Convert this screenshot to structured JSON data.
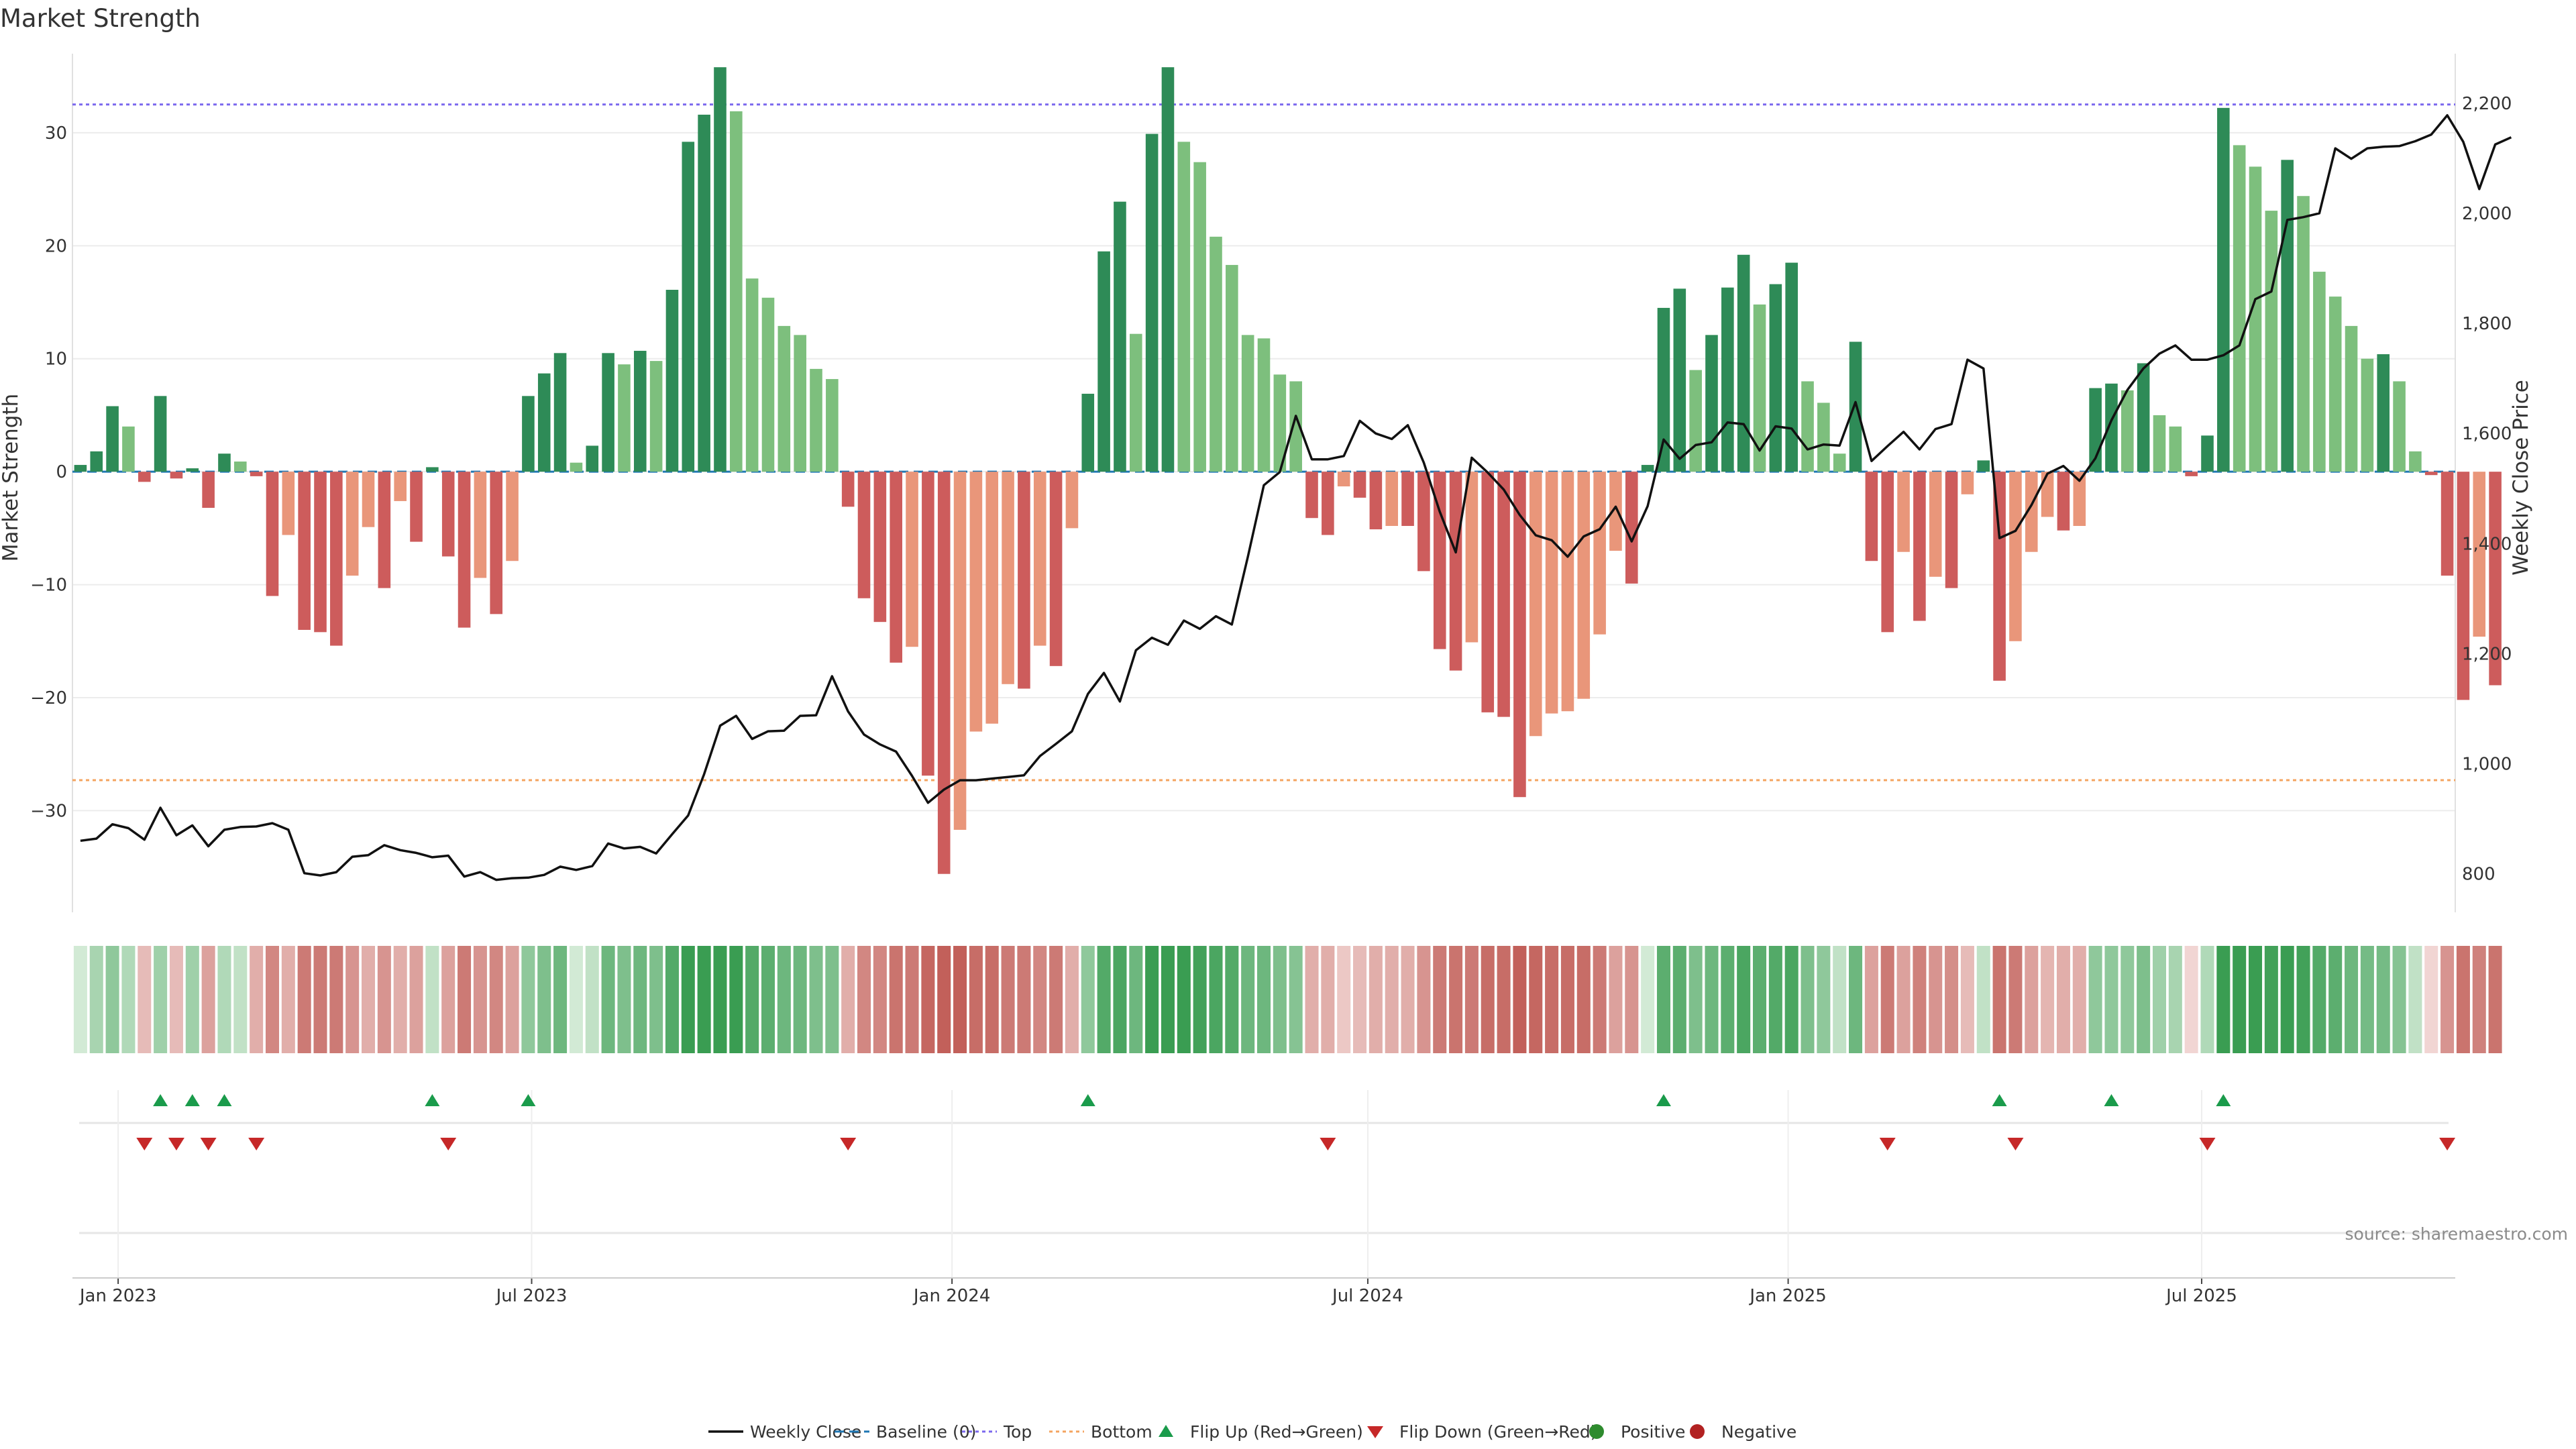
{
  "chart_data": {
    "type": "bar",
    "title": "Market Strength",
    "ylabel": "Market Strength",
    "y2label": "Weekly Close Price",
    "ylim": [
      -39,
      37
    ],
    "y2lim": [
      730,
      2290
    ],
    "yticks": [
      30,
      20,
      10,
      0,
      -10,
      -20,
      -30
    ],
    "y2ticks": [
      2200,
      2000,
      1800,
      1600,
      1400,
      1200,
      1000,
      800
    ],
    "x_start": "2022-12-12",
    "x_end": "2025-10-20",
    "xticks": [
      {
        "date": "2023-01-01",
        "label": "Jan 2023"
      },
      {
        "date": "2023-07-01",
        "label": "Jul 2023"
      },
      {
        "date": "2024-01-01",
        "label": "Jan 2024"
      },
      {
        "date": "2024-07-01",
        "label": "Jul 2024"
      },
      {
        "date": "2025-01-01",
        "label": "Jan 2025"
      },
      {
        "date": "2025-07-01",
        "label": "Jul 2025"
      }
    ],
    "top": 32.5,
    "bottom": -27.3,
    "weeks_start": "2022-12-12",
    "market_strength": [
      0.6,
      1.8,
      5.8,
      4.0,
      -0.9,
      6.7,
      -0.6,
      0.3,
      -3.2,
      1.6,
      0.9,
      -0.4,
      -11.0,
      -5.6,
      -14.0,
      -14.2,
      -15.4,
      -9.2,
      -4.9,
      -10.3,
      -2.6,
      -6.2,
      0.4,
      -7.5,
      -13.8,
      -9.4,
      -12.6,
      -7.9,
      6.7,
      8.7,
      10.5,
      0.8,
      2.3,
      10.5,
      9.5,
      10.7,
      9.8,
      16.1,
      29.2,
      31.6,
      35.8,
      31.9,
      17.1,
      15.4,
      12.9,
      12.1,
      9.1,
      8.2,
      -3.1,
      -11.2,
      -13.3,
      -16.9,
      -15.5,
      -26.9,
      -35.6,
      -31.7,
      -23.0,
      -22.3,
      -18.8,
      -19.2,
      -15.4,
      -17.2,
      -5.0,
      6.9,
      19.5,
      23.9,
      12.2,
      29.9,
      35.8,
      29.2,
      27.4,
      20.8,
      18.3,
      12.1,
      11.8,
      8.6,
      8.0,
      -4.1,
      -5.6,
      -1.3,
      -2.3,
      -5.1,
      -4.8,
      -4.8,
      -8.8,
      -15.7,
      -17.6,
      -15.1,
      -21.3,
      -21.7,
      -28.8,
      -23.4,
      -21.4,
      -21.2,
      -20.1,
      -14.4,
      -7.0,
      -9.9,
      0.6,
      14.5,
      16.2,
      9.0,
      12.1,
      16.3,
      19.2,
      14.8,
      16.6,
      18.5,
      8.0,
      6.1,
      1.6,
      11.5,
      -7.9,
      -14.2,
      -7.1,
      -13.2,
      -9.3,
      -10.3,
      -2.0,
      1.0,
      -18.5,
      -15.0,
      -7.1,
      -4.0,
      -5.2,
      -4.8,
      7.4,
      7.8,
      7.2,
      9.6,
      5.0,
      4.0,
      -0.4,
      3.2,
      32.2,
      28.9,
      27.0,
      23.1,
      27.6,
      24.4,
      17.7,
      15.5,
      12.9,
      10.0,
      10.4,
      8.0,
      1.8,
      -0.3,
      -9.2,
      -20.2,
      -14.6,
      -18.9
    ],
    "weekly_close": [
      860,
      864,
      890,
      883,
      862,
      920,
      870,
      888,
      850,
      880,
      885,
      886,
      892,
      880,
      801,
      797,
      803,
      831,
      834,
      852,
      843,
      838,
      830,
      833,
      795,
      803,
      789,
      792,
      793,
      798,
      813,
      807,
      814,
      855,
      846,
      849,
      837,
      872,
      906,
      981,
      1069,
      1087,
      1045,
      1059,
      1060,
      1087,
      1088,
      1159,
      1095,
      1053,
      1035,
      1022,
      978,
      929,
      953,
      970,
      970,
      973,
      976,
      979,
      1014,
      1036,
      1059,
      1127,
      1165,
      1113,
      1206,
      1229,
      1216,
      1260,
      1245,
      1268,
      1253,
      1376,
      1506,
      1530,
      1632,
      1553,
      1553,
      1559,
      1623,
      1600,
      1590,
      1615,
      1547,
      1458,
      1384,
      1556,
      1529,
      1498,
      1452,
      1415,
      1406,
      1376,
      1413,
      1426,
      1467,
      1404,
      1468,
      1589,
      1554,
      1579,
      1584,
      1620,
      1617,
      1569,
      1613,
      1609,
      1571,
      1580,
      1578,
      1657,
      1550,
      1577,
      1603,
      1571,
      1608,
      1617,
      1734,
      1718,
      1410,
      1423,
      1470,
      1527,
      1541,
      1514,
      1555,
      1624,
      1679,
      1718,
      1745,
      1760,
      1734,
      1734,
      1742,
      1760,
      1844,
      1858,
      1988,
      1993,
      2000,
      2118,
      2099,
      2118,
      2121,
      2122,
      2131,
      2143,
      2178,
      2130,
      2044,
      2125,
      2138
    ],
    "hue_strip": [
      0.1,
      0.35,
      0.5,
      0.3,
      -0.3,
      0.4,
      -0.3,
      0.4,
      -0.5,
      0.3,
      0.2,
      -0.4,
      -0.7,
      -0.4,
      -0.8,
      -0.8,
      -0.8,
      -0.6,
      -0.4,
      -0.6,
      -0.4,
      -0.5,
      0.2,
      -0.5,
      -0.8,
      -0.6,
      -0.7,
      -0.5,
      0.5,
      0.6,
      0.7,
      0.1,
      0.2,
      0.7,
      0.6,
      0.7,
      0.6,
      0.85,
      1.0,
      1.0,
      1.0,
      1.0,
      0.85,
      0.8,
      0.7,
      0.7,
      0.6,
      0.6,
      -0.4,
      -0.7,
      -0.7,
      -0.85,
      -0.8,
      -0.95,
      -1.0,
      -1.0,
      -0.9,
      -0.9,
      -0.8,
      -0.8,
      -0.7,
      -0.8,
      -0.4,
      0.5,
      0.85,
      0.9,
      0.7,
      1.0,
      1.0,
      1.0,
      0.95,
      0.9,
      0.85,
      0.7,
      0.7,
      0.6,
      0.55,
      -0.4,
      -0.4,
      -0.2,
      -0.3,
      -0.4,
      -0.4,
      -0.4,
      -0.6,
      -0.8,
      -0.85,
      -0.8,
      -0.9,
      -0.9,
      -1.0,
      -0.95,
      -0.9,
      -0.9,
      -0.9,
      -0.8,
      -0.5,
      -0.6,
      0.1,
      0.8,
      0.8,
      0.6,
      0.7,
      0.8,
      0.9,
      0.8,
      0.85,
      0.9,
      0.6,
      0.5,
      0.2,
      0.7,
      -0.5,
      -0.8,
      -0.5,
      -0.75,
      -0.6,
      -0.65,
      -0.3,
      0.2,
      -0.85,
      -0.8,
      -0.5,
      -0.35,
      -0.4,
      -0.4,
      0.5,
      0.5,
      0.5,
      0.6,
      0.4,
      0.35,
      -0.1,
      0.3,
      1.0,
      1.0,
      1.0,
      0.95,
      1.0,
      0.95,
      0.85,
      0.8,
      0.7,
      0.65,
      0.65,
      0.55,
      0.2,
      -0.1,
      -0.6,
      -0.85,
      -0.75,
      -0.85
    ],
    "flip_up_weeks": [
      5,
      7,
      9,
      22,
      28,
      63,
      99,
      120,
      127,
      134
    ],
    "flip_down_weeks": [
      4,
      6,
      8,
      11,
      23,
      48,
      78,
      113,
      121,
      133,
      148
    ],
    "colors": {
      "strong_positive": "#2e8b57",
      "weak_positive": "#7dbf7d",
      "strong_negative": "#cd5c5c",
      "weak_negative": "#e9967a",
      "price_line": "#111111",
      "top_line": "#7b68ee",
      "bottom_line": "#f4a460",
      "baseline": "#1f77b4",
      "flip_up": "#1a9b4b",
      "flip_down": "#c62828",
      "positive_dot": "#2e8b2e",
      "negative_dot": "#b22222"
    },
    "legend": [
      "Weekly Close",
      "Baseline (0)",
      "Top",
      "Bottom",
      "Flip Up (Red→Green)",
      "Flip Down (Green→Red)",
      "Positive",
      "Negative"
    ],
    "legend_position": "bottom-center"
  },
  "source_note": "source: sharemaestro.com"
}
